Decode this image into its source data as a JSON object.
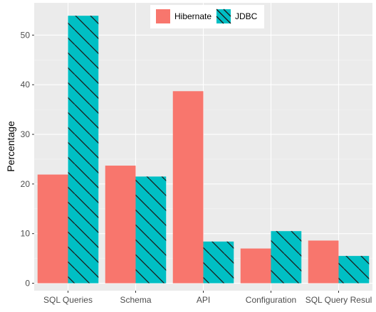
{
  "colors": {
    "panel_background": "#ebebeb",
    "grid_major": "#ffffff",
    "grid_minor": "#f5f5f5",
    "hibernate": "#f8766d",
    "jdbc": "#00bfc4",
    "hatch": "#1a1a1a"
  },
  "chart_data": {
    "type": "bar",
    "categories": [
      "SQL Queries",
      "Schema",
      "API",
      "Configuration",
      "SQL Query Resul"
    ],
    "series": [
      {
        "name": "Hibernate",
        "values": [
          21.9,
          23.7,
          38.7,
          7.0,
          8.6
        ],
        "color": "#f8766d",
        "pattern": "none"
      },
      {
        "name": "JDBC",
        "values": [
          53.9,
          21.5,
          8.4,
          10.5,
          5.5
        ],
        "color": "#00bfc4",
        "pattern": "diagonal-hatch"
      }
    ],
    "title": "",
    "xlabel": "",
    "ylabel": "Percentage",
    "ylim": [
      -1.5,
      56.5
    ],
    "y_ticks": [
      0,
      10,
      20,
      30,
      40,
      50
    ],
    "grid": true,
    "legend": {
      "position": "top-center",
      "entries": [
        "Hibernate",
        "JDBC"
      ]
    }
  }
}
